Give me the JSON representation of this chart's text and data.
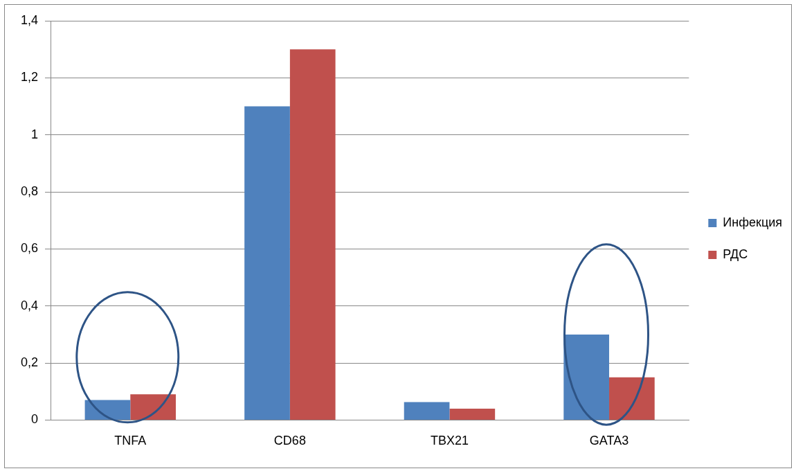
{
  "chart_data": {
    "type": "bar",
    "categories": [
      "TNFA",
      "CD68",
      "TBX21",
      "GATA3"
    ],
    "series": [
      {
        "name": "Инфекция",
        "color": "#4f81bd",
        "values": [
          0.07,
          1.1,
          0.063,
          0.3
        ]
      },
      {
        "name": "РДС",
        "color": "#c0504d",
        "values": [
          0.09,
          1.3,
          0.04,
          0.15
        ]
      }
    ],
    "ylim": [
      0,
      1.4
    ],
    "yticks": [
      0,
      {
        "value": 0.2,
        "label": "0,2"
      },
      {
        "value": 0.4,
        "label": "0,4"
      },
      {
        "value": 0.6,
        "label": "0,6"
      },
      {
        "value": 0.8,
        "label": "0,8"
      },
      1,
      {
        "value": 1.2,
        "label": "1,2"
      },
      {
        "value": 1.4,
        "label": "1,4"
      }
    ],
    "grid": "y",
    "legend": "right"
  }
}
